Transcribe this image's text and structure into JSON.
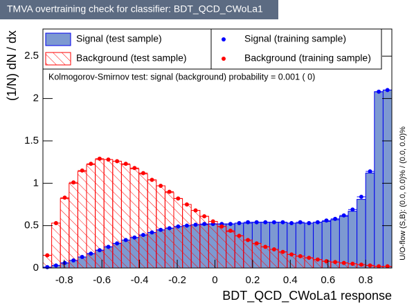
{
  "chart_data": {
    "type": "histogram",
    "title": "TMVA overtraining check for classifier: BDT_QCD_CWoLa1",
    "xlabel": "BDT_QCD_CWoLa1 response",
    "ylabel": "(1/N) dN / dx",
    "annotation": "Kolmogorov-Smirnov test: signal (background) probability = 0.001 (    0)",
    "side_note": "U/O-flow (S,B): (0.0, 0.0)% / (0.0, 0.0)%",
    "bins": [
      -0.913,
      -0.8667,
      -0.8204,
      -0.7741,
      -0.7278,
      -0.6815,
      -0.6352,
      -0.5889,
      -0.5426,
      -0.4963,
      -0.45,
      -0.4037,
      -0.3574,
      -0.3111,
      -0.2648,
      -0.2185,
      -0.1722,
      -0.1259,
      -0.0796,
      -0.0333,
      0.013,
      0.0593,
      0.1056,
      0.1519,
      0.1982,
      0.2445,
      0.2908,
      0.3371,
      0.3834,
      0.4297,
      0.476,
      0.5223,
      0.5686,
      0.6149,
      0.6612,
      0.7075,
      0.7538,
      0.8001,
      0.8464,
      0.8927,
      0.939
    ],
    "series": [
      {
        "name": "Signal (test sample)",
        "type": "histogram",
        "color": "#0000ee",
        "fill": "#7d99d1",
        "values": [
          0.01,
          0.03,
          0.06,
          0.09,
          0.13,
          0.17,
          0.21,
          0.25,
          0.29,
          0.33,
          0.36,
          0.39,
          0.42,
          0.45,
          0.47,
          0.49,
          0.5,
          0.51,
          0.51,
          0.52,
          0.52,
          0.52,
          0.53,
          0.53,
          0.54,
          0.54,
          0.54,
          0.54,
          0.53,
          0.53,
          0.53,
          0.54,
          0.55,
          0.57,
          0.61,
          0.67,
          0.81,
          1.12,
          2.08,
          2.1
        ]
      },
      {
        "name": "Background (test sample)",
        "type": "histogram",
        "color": "#ff0000",
        "fill": "hatch",
        "values": [
          0.15,
          0.53,
          0.82,
          1.0,
          1.14,
          1.22,
          1.28,
          1.28,
          1.26,
          1.22,
          1.17,
          1.11,
          1.04,
          0.97,
          0.89,
          0.82,
          0.75,
          0.68,
          0.61,
          0.55,
          0.49,
          0.43,
          0.38,
          0.33,
          0.29,
          0.25,
          0.22,
          0.19,
          0.16,
          0.14,
          0.12,
          0.1,
          0.08,
          0.07,
          0.06,
          0.05,
          0.04,
          0.03,
          0.02,
          0.02
        ]
      },
      {
        "name": "Signal (training sample)",
        "type": "scatter",
        "color": "#0000ff",
        "values": [
          0.01,
          0.03,
          0.06,
          0.09,
          0.13,
          0.17,
          0.21,
          0.25,
          0.29,
          0.33,
          0.36,
          0.39,
          0.42,
          0.45,
          0.47,
          0.49,
          0.5,
          0.51,
          0.52,
          0.52,
          0.52,
          0.52,
          0.53,
          0.54,
          0.54,
          0.54,
          0.54,
          0.54,
          0.53,
          0.54,
          0.53,
          0.54,
          0.56,
          0.58,
          0.62,
          0.69,
          0.84,
          1.14,
          2.08,
          2.1
        ]
      },
      {
        "name": "Background (training sample)",
        "type": "scatter",
        "color": "#ff0000",
        "values": [
          0.15,
          0.53,
          0.83,
          1.01,
          1.15,
          1.23,
          1.29,
          1.28,
          1.26,
          1.23,
          1.18,
          1.12,
          1.04,
          0.97,
          0.9,
          0.82,
          0.75,
          0.68,
          0.61,
          0.55,
          0.49,
          0.44,
          0.38,
          0.33,
          0.29,
          0.25,
          0.22,
          0.19,
          0.16,
          0.14,
          0.12,
          0.1,
          0.08,
          0.07,
          0.06,
          0.05,
          0.04,
          0.03,
          0.02,
          0.02
        ]
      }
    ],
    "xlim": [
      -0.913,
      0.939
    ],
    "ylim": [
      0,
      2.82
    ],
    "xticks": [
      -0.8,
      -0.6,
      -0.4,
      -0.2,
      0,
      0.2,
      0.4,
      0.6,
      0.8
    ],
    "yticks": [
      0,
      0.5,
      1,
      1.5,
      2,
      2.5
    ]
  }
}
